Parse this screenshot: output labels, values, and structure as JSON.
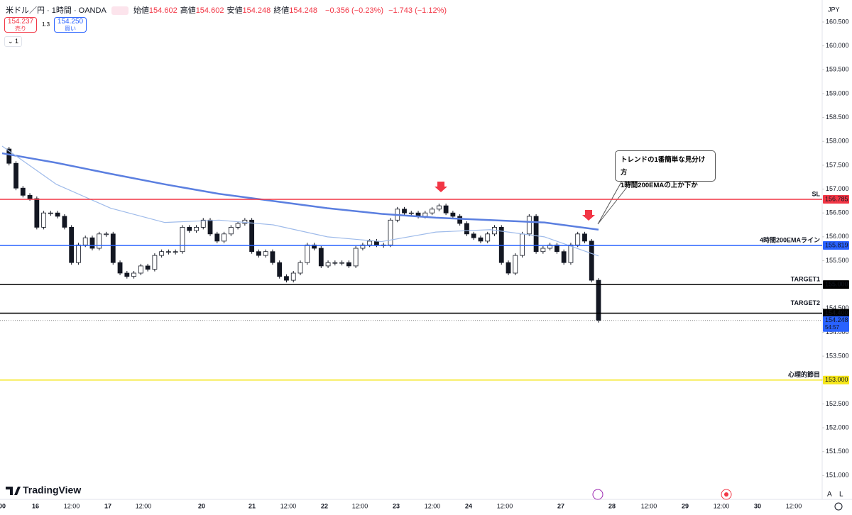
{
  "header": {
    "symbol": "米ドル／円 · 1時間 · OANDA",
    "ohlc": [
      {
        "label": "始値",
        "value": "154.602"
      },
      {
        "label": "高値",
        "value": "154.602"
      },
      {
        "label": "安値",
        "value": "154.248"
      },
      {
        "label": "終値",
        "value": "154.248"
      }
    ],
    "change": "−0.356 (−0.23%)",
    "change_week": "−1.743 (−1.12%)"
  },
  "trade": {
    "sell_price": "154.237",
    "sell_label": "売り",
    "spread": "1.3",
    "buy_price": "154.250",
    "buy_label": "買い",
    "lot": "1"
  },
  "currency": "JPY",
  "chart": {
    "yticks": [
      {
        "value": 151,
        "label": "151.000"
      },
      {
        "value": 151.5,
        "label": "151.500"
      },
      {
        "value": 152,
        "label": "152.000"
      },
      {
        "value": 152.5,
        "label": "152.500"
      },
      {
        "value": 153,
        "label": "153.000"
      },
      {
        "value": 153.5,
        "label": "153.500"
      },
      {
        "value": 154,
        "label": "154.000"
      },
      {
        "value": 154.5,
        "label": "154.500"
      },
      {
        "value": 155,
        "label": "155.000"
      },
      {
        "value": 155.5,
        "label": "155.500"
      },
      {
        "value": 156,
        "label": "156.000"
      },
      {
        "value": 156.5,
        "label": "156.500"
      },
      {
        "value": 157,
        "label": "157.000"
      },
      {
        "value": 157.5,
        "label": "157.500"
      },
      {
        "value": 158,
        "label": "158.000"
      },
      {
        "value": 158.5,
        "label": "158.500"
      },
      {
        "value": 159,
        "label": "159.000"
      },
      {
        "value": 159.5,
        "label": "159.500"
      },
      {
        "value": 160,
        "label": "160.000"
      },
      {
        "value": 160.5,
        "label": "160.500"
      }
    ],
    "closes": [
      157.84,
      157.54,
      157.02,
      156.87,
      156.8,
      156.2,
      156.5,
      156.5,
      156.43,
      156.2,
      155.46,
      155.83,
      155.98,
      155.76,
      156.06,
      156.06,
      155.46,
      155.24,
      155.17,
      155.24,
      155.39,
      155.32,
      155.61,
      155.69,
      155.69,
      155.69,
      156.2,
      156.13,
      156.2,
      156.35,
      156.06,
      155.91,
      156.06,
      156.2,
      156.28,
      156.35,
      155.69,
      155.61,
      155.69,
      155.46,
      155.17,
      155.09,
      155.24,
      155.46,
      155.83,
      155.76,
      155.39,
      155.46,
      155.46,
      155.46,
      155.39,
      155.76,
      155.83,
      155.91,
      155.83,
      155.83,
      156.35,
      156.58,
      156.5,
      156.5,
      156.43,
      156.5,
      156.58,
      156.65,
      156.5,
      156.43,
      156.28,
      156.06,
      155.98,
      155.91,
      156.06,
      156.2,
      155.46,
      155.24,
      155.61,
      156.06,
      156.43,
      155.69,
      155.76,
      155.83,
      155.69,
      155.46,
      155.83,
      156.06,
      155.91,
      155.09,
      154.248
    ],
    "ema_slow": {
      "color": "#5b7fe0",
      "values": [
        157.75,
        157.55,
        157.32,
        157.1,
        156.9,
        156.75,
        156.6,
        156.48,
        156.4,
        156.35,
        156.3,
        156.15
      ]
    },
    "ema_fast": {
      "color": "#9fbbea",
      "values": [
        157.9,
        157.1,
        156.6,
        156.3,
        156.35,
        156.25,
        156.0,
        155.9,
        156.1,
        156.15,
        156.0,
        155.6
      ]
    },
    "levels": [
      {
        "name": "SL",
        "price": 156.785,
        "price_label": "156.785",
        "color": "#f23645"
      },
      {
        "name": "4時間200EMAライン",
        "price": 155.819,
        "price_label": "155.819",
        "color": "#2962ff"
      },
      {
        "name": "TARGET1",
        "price": 155,
        "price_label": "155.000",
        "color": "#000000"
      },
      {
        "name": "TARGET2",
        "price": 154.4,
        "price_label": "154.400",
        "color": "#000000"
      },
      {
        "name": "心理的節目",
        "price": 153,
        "price_label": "153.000",
        "color": "#f5e61a"
      }
    ],
    "current": {
      "price": 154.248,
      "price_label": "154.248",
      "countdown": "54:57"
    },
    "annotation": [
      "トレンドの1番簡単な見分け方",
      "1時間200EMAの上か下か"
    ],
    "time_labels": [
      "00",
      "16",
      "12:00",
      "17",
      "12:00",
      "20",
      "21",
      "12:00",
      "22",
      "12:00",
      "23",
      "12:00",
      "24",
      "12:00",
      "27",
      "28",
      "12:00",
      "29",
      "12:00",
      "30",
      "12:00"
    ]
  },
  "logo": "TradingView",
  "scale_buttons": [
    "A",
    "L"
  ]
}
